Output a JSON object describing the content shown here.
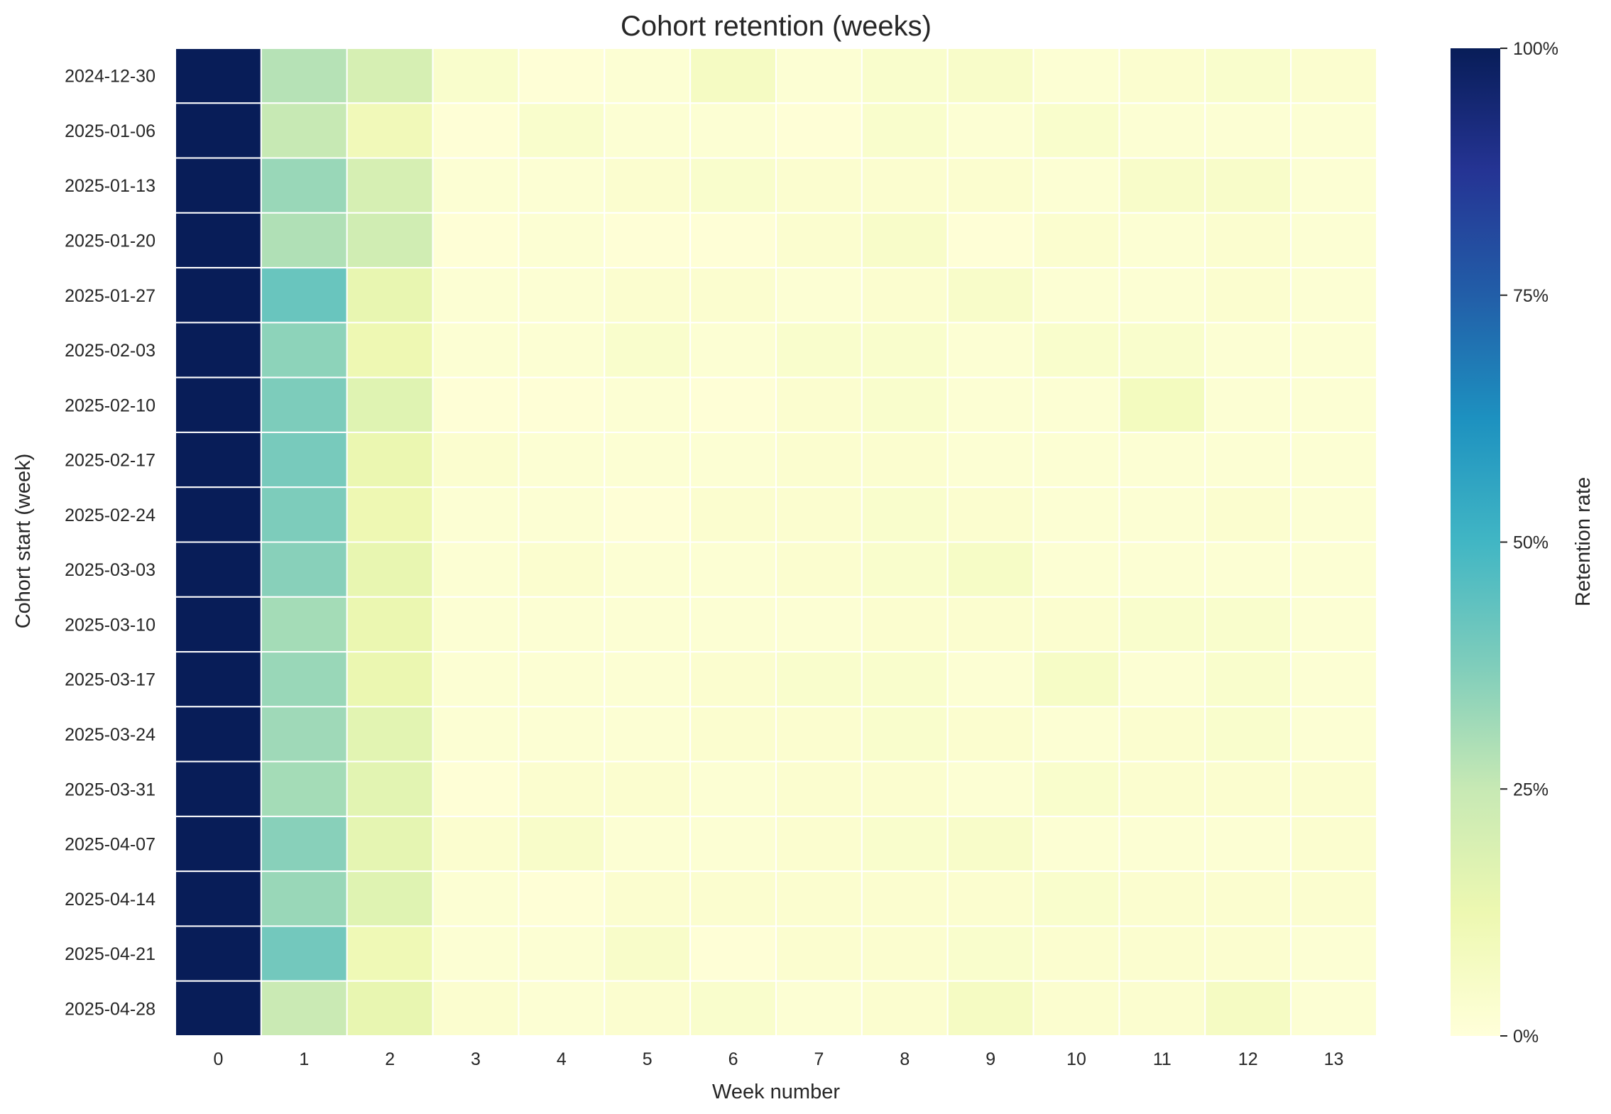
{
  "chart_data": {
    "type": "heatmap",
    "title": "Cohort retention (weeks)",
    "xlabel": "Week number",
    "ylabel": "Cohort start (week)",
    "colorbar_label": "Retention rate",
    "colorbar_ticks": [
      "0%",
      "25%",
      "50%",
      "75%",
      "100%"
    ],
    "colorbar_tick_values": [
      0,
      0.25,
      0.5,
      0.75,
      1.0
    ],
    "vmin": 0,
    "vmax": 1,
    "colormap": "YlGnBu",
    "grid": "white cell borders",
    "x_categories": [
      "0",
      "1",
      "2",
      "3",
      "4",
      "5",
      "6",
      "7",
      "8",
      "9",
      "10",
      "11",
      "12",
      "13"
    ],
    "y_categories": [
      "2024-12-30",
      "2025-01-06",
      "2025-01-13",
      "2025-01-20",
      "2025-01-27",
      "2025-02-03",
      "2025-02-10",
      "2025-02-17",
      "2025-02-24",
      "2025-03-03",
      "2025-03-10",
      "2025-03-17",
      "2025-03-24",
      "2025-03-31",
      "2025-04-07",
      "2025-04-14",
      "2025-04-21",
      "2025-04-28"
    ],
    "values": [
      [
        1.0,
        0.28,
        0.2,
        0.04,
        0.01,
        0.02,
        0.07,
        0.02,
        0.04,
        0.05,
        0.02,
        0.03,
        0.04,
        0.03
      ],
      [
        1.0,
        0.25,
        0.1,
        0.01,
        0.04,
        0.02,
        0.02,
        0.01,
        0.04,
        0.02,
        0.04,
        0.02,
        0.02,
        0.02
      ],
      [
        1.0,
        0.33,
        0.2,
        0.02,
        0.02,
        0.03,
        0.04,
        0.03,
        0.03,
        0.03,
        0.02,
        0.05,
        0.05,
        0.02
      ],
      [
        1.0,
        0.29,
        0.22,
        0.01,
        0.02,
        0.01,
        0.01,
        0.03,
        0.05,
        0.01,
        0.03,
        0.02,
        0.03,
        0.02
      ],
      [
        1.0,
        0.42,
        0.14,
        0.02,
        0.02,
        0.03,
        0.03,
        0.02,
        0.03,
        0.05,
        0.02,
        0.02,
        0.03,
        0.02
      ],
      [
        1.0,
        0.35,
        0.12,
        0.02,
        0.02,
        0.04,
        0.02,
        0.04,
        0.04,
        0.02,
        0.04,
        0.04,
        0.02,
        0.02
      ],
      [
        1.0,
        0.38,
        0.17,
        0.01,
        0.01,
        0.02,
        0.01,
        0.03,
        0.04,
        0.02,
        0.02,
        0.08,
        0.02,
        0.02
      ],
      [
        1.0,
        0.39,
        0.13,
        0.03,
        0.02,
        0.02,
        0.02,
        0.03,
        0.03,
        0.02,
        0.02,
        0.02,
        0.02,
        0.02
      ],
      [
        1.0,
        0.38,
        0.12,
        0.02,
        0.02,
        0.01,
        0.03,
        0.03,
        0.04,
        0.03,
        0.02,
        0.02,
        0.03,
        0.02
      ],
      [
        1.0,
        0.36,
        0.14,
        0.02,
        0.03,
        0.02,
        0.02,
        0.03,
        0.04,
        0.06,
        0.02,
        0.02,
        0.02,
        0.02
      ],
      [
        1.0,
        0.31,
        0.13,
        0.02,
        0.02,
        0.02,
        0.02,
        0.02,
        0.03,
        0.03,
        0.03,
        0.04,
        0.04,
        0.02
      ],
      [
        1.0,
        0.33,
        0.13,
        0.02,
        0.02,
        0.02,
        0.03,
        0.04,
        0.04,
        0.02,
        0.06,
        0.02,
        0.04,
        0.02
      ],
      [
        1.0,
        0.32,
        0.16,
        0.02,
        0.02,
        0.02,
        0.03,
        0.03,
        0.04,
        0.03,
        0.02,
        0.03,
        0.04,
        0.02
      ],
      [
        1.0,
        0.31,
        0.16,
        0.01,
        0.03,
        0.03,
        0.02,
        0.03,
        0.03,
        0.02,
        0.04,
        0.03,
        0.03,
        0.03
      ],
      [
        1.0,
        0.36,
        0.15,
        0.03,
        0.05,
        0.02,
        0.02,
        0.03,
        0.04,
        0.05,
        0.02,
        0.02,
        0.02,
        0.03
      ],
      [
        1.0,
        0.33,
        0.17,
        0.02,
        0.01,
        0.03,
        0.03,
        0.03,
        0.03,
        0.03,
        0.04,
        0.03,
        0.03,
        0.03
      ],
      [
        1.0,
        0.4,
        0.11,
        0.02,
        0.02,
        0.05,
        0.01,
        0.03,
        0.03,
        0.04,
        0.03,
        0.03,
        0.03,
        0.02
      ],
      [
        1.0,
        0.24,
        0.14,
        0.03,
        0.02,
        0.03,
        0.04,
        0.02,
        0.03,
        0.07,
        0.03,
        0.03,
        0.07,
        0.02
      ]
    ]
  }
}
